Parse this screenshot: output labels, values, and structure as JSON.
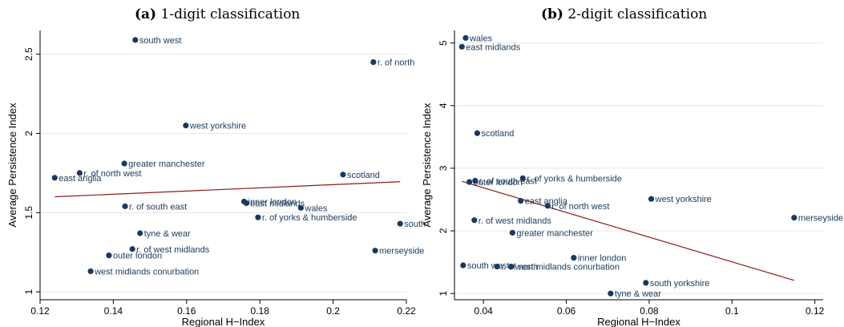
{
  "panels": [
    {
      "letter": "(a)",
      "title": "1-digit classification"
    },
    {
      "letter": "(b)",
      "title": "2-digit classification"
    }
  ],
  "chart_data": [
    {
      "type": "scatter",
      "title": "(a) 1-digit classification",
      "xlabel": "Regional H−Index",
      "ylabel": "Average Persistence Index",
      "xlim": [
        0.12,
        0.22
      ],
      "ylim": [
        0.95,
        2.65
      ],
      "xticks": [
        0.12,
        0.14,
        0.16,
        0.18,
        0.2,
        0.22
      ],
      "xtick_labels": [
        "0.12",
        "0.14",
        "0.16",
        "0.18",
        "0.2",
        "0.22"
      ],
      "yticks": [
        1,
        1.5,
        2,
        2.5
      ],
      "ytick_labels": [
        "1",
        "1.5",
        "2",
        "2.5"
      ],
      "grid": true,
      "points": [
        {
          "label": "south west",
          "x": 0.146,
          "y": 2.59
        },
        {
          "label": "r. of north",
          "x": 0.211,
          "y": 2.45
        },
        {
          "label": "west yorkshire",
          "x": 0.1598,
          "y": 2.05
        },
        {
          "label": "greater manchester",
          "x": 0.143,
          "y": 1.81
        },
        {
          "label": "r. of north west",
          "x": 0.1308,
          "y": 1.75
        },
        {
          "label": "east anglia",
          "x": 0.124,
          "y": 1.72
        },
        {
          "label": "scotland",
          "x": 0.2027,
          "y": 1.74
        },
        {
          "label": "inner london",
          "x": 0.1757,
          "y": 1.57
        },
        {
          "label": "east midlands",
          "x": 0.1763,
          "y": 1.56
        },
        {
          "label": "wales",
          "x": 0.1912,
          "y": 1.53
        },
        {
          "label": "r. of south east",
          "x": 0.1432,
          "y": 1.54
        },
        {
          "label": "r. of yorks & humberside",
          "x": 0.1795,
          "y": 1.47
        },
        {
          "label": "south",
          "x": 0.2183,
          "y": 1.43
        },
        {
          "label": "tyne & wear",
          "x": 0.1473,
          "y": 1.37
        },
        {
          "label": "r. of west midlands",
          "x": 0.1452,
          "y": 1.27
        },
        {
          "label": "outer london",
          "x": 0.1388,
          "y": 1.23
        },
        {
          "label": "merseyside",
          "x": 0.2115,
          "y": 1.26
        },
        {
          "label": "west midlands conurbation",
          "x": 0.1338,
          "y": 1.13
        }
      ],
      "fit_line": {
        "x": [
          0.124,
          0.2183
        ],
        "y": [
          1.6,
          1.695
        ]
      }
    },
    {
      "type": "scatter",
      "title": "(b) 2-digit classification",
      "xlabel": "Regional H−Index",
      "ylabel": "Average Persistence Index",
      "xlim": [
        0.033,
        0.122
      ],
      "ylim": [
        0.9,
        5.2
      ],
      "xticks": [
        0.04,
        0.06,
        0.08,
        0.1,
        0.12
      ],
      "xtick_labels": [
        "0.04",
        "0.06",
        "0.08",
        "0.1",
        "0.12"
      ],
      "yticks": [
        1,
        2,
        3,
        4,
        5
      ],
      "ytick_labels": [
        "1",
        "2",
        "3",
        "4",
        "5"
      ],
      "grid": true,
      "points": [
        {
          "label": "wales",
          "x": 0.0357,
          "y": 5.08
        },
        {
          "label": "east midlands",
          "x": 0.0348,
          "y": 4.94
        },
        {
          "label": "scotland",
          "x": 0.0385,
          "y": 3.56
        },
        {
          "label": "r. of yorks & humberside",
          "x": 0.0495,
          "y": 2.84
        },
        {
          "label": "outer london",
          "x": 0.0366,
          "y": 2.78
        },
        {
          "label": "r. of south east",
          "x": 0.038,
          "y": 2.8
        },
        {
          "label": "west yorkshire",
          "x": 0.0805,
          "y": 2.51
        },
        {
          "label": "east anglia",
          "x": 0.049,
          "y": 2.48
        },
        {
          "label": "r. of north west",
          "x": 0.0555,
          "y": 2.4
        },
        {
          "label": "merseyside",
          "x": 0.115,
          "y": 2.21
        },
        {
          "label": "r. of west midlands",
          "x": 0.0378,
          "y": 2.17
        },
        {
          "label": "greater manchester",
          "x": 0.047,
          "y": 1.97
        },
        {
          "label": "inner london",
          "x": 0.0618,
          "y": 1.57
        },
        {
          "label": "south west",
          "x": 0.0351,
          "y": 1.45
        },
        {
          "label": "r. of north",
          "x": 0.0433,
          "y": 1.43
        },
        {
          "label": "west midlands conurbation",
          "x": 0.0467,
          "y": 1.43
        },
        {
          "label": "south yorkshire",
          "x": 0.0792,
          "y": 1.17
        },
        {
          "label": "tyne & wear",
          "x": 0.0707,
          "y": 1.0
        }
      ],
      "fit_line": {
        "x": [
          0.0348,
          0.115
        ],
        "y": [
          2.79,
          1.21
        ]
      }
    }
  ]
}
